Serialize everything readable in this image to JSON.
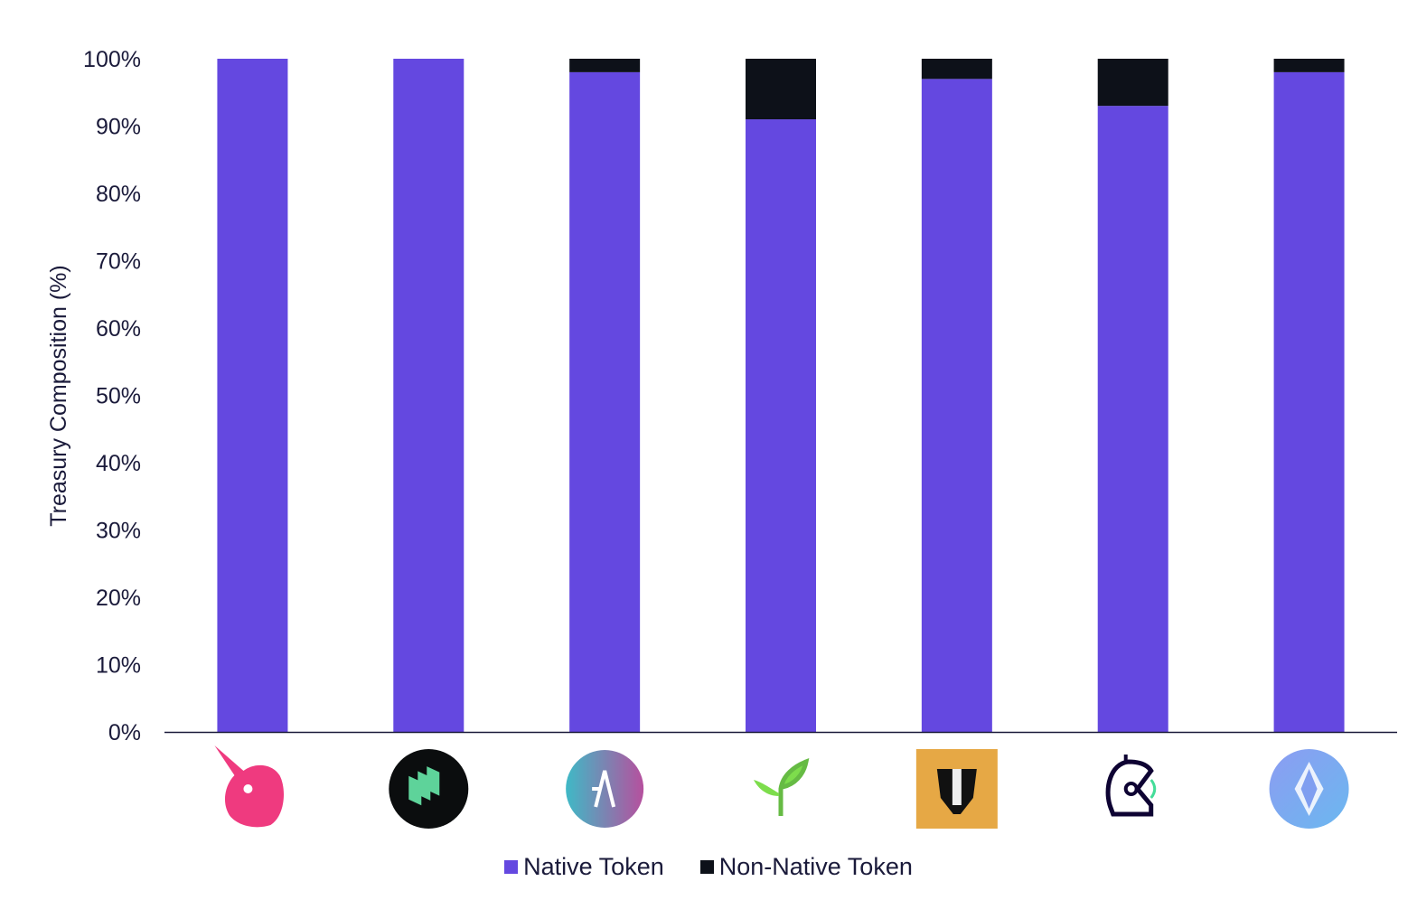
{
  "chart_data": {
    "type": "bar",
    "stacked": true,
    "categories": [
      "uniswap-logo",
      "compound-logo",
      "aave-logo",
      "sprout-logo",
      "badger-logo",
      "gitcoin-logo",
      "ens-logo"
    ],
    "series": [
      {
        "name": "Native Token",
        "color": "#6448e0",
        "values": [
          100,
          100,
          98,
          91,
          97,
          93,
          98
        ]
      },
      {
        "name": "Non-Native Token",
        "color": "#0d1119",
        "values": [
          0,
          0,
          2,
          9,
          3,
          7,
          2
        ]
      }
    ],
    "ylabel": "Treasury Composition (%)",
    "xlabel": "",
    "ylim": [
      0,
      100
    ],
    "yticks": [
      "0%",
      "10%",
      "20%",
      "30%",
      "40%",
      "50%",
      "60%",
      "70%",
      "80%",
      "90%",
      "100%"
    ],
    "grid": false,
    "legend_position": "bottom"
  }
}
